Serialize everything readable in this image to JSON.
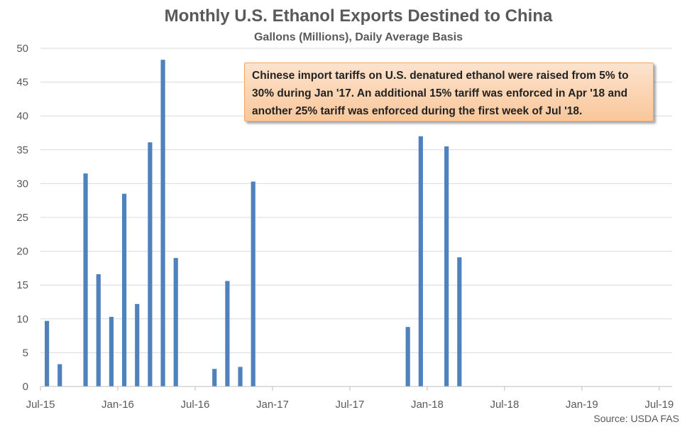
{
  "chart_data": {
    "type": "bar",
    "title": "Monthly U.S. Ethanol Exports Destined to China",
    "subtitle": "Gallons (Millions), Daily Average Basis",
    "xlabel": "",
    "ylabel": "",
    "ylim": [
      0,
      50
    ],
    "yticks": [
      0,
      5,
      10,
      15,
      20,
      25,
      30,
      35,
      40,
      45,
      50
    ],
    "xtick_labels": [
      "Jul-15",
      "Jan-16",
      "Jul-16",
      "Jan-17",
      "Jul-17",
      "Jan-18",
      "Jul-18",
      "Jan-19",
      "Jul-19"
    ],
    "grid": true,
    "bar_color": "#4f81bd",
    "categories": [
      "Jul-15",
      "Aug-15",
      "Sep-15",
      "Oct-15",
      "Nov-15",
      "Dec-15",
      "Jan-16",
      "Feb-16",
      "Mar-16",
      "Apr-16",
      "May-16",
      "Jun-16",
      "Jul-16",
      "Aug-16",
      "Sep-16",
      "Oct-16",
      "Nov-16",
      "Dec-16",
      "Jan-17",
      "Feb-17",
      "Mar-17",
      "Apr-17",
      "May-17",
      "Jun-17",
      "Jul-17",
      "Aug-17",
      "Sep-17",
      "Oct-17",
      "Nov-17",
      "Dec-17",
      "Jan-18",
      "Feb-18",
      "Mar-18",
      "Apr-18",
      "May-18",
      "Jun-18",
      "Jul-18",
      "Aug-18",
      "Sep-18",
      "Oct-18",
      "Nov-18",
      "Dec-18",
      "Jan-19",
      "Feb-19",
      "Mar-19",
      "Apr-19",
      "May-19",
      "Jun-19",
      "Jul-19"
    ],
    "values": [
      9.7,
      3.3,
      0,
      31.5,
      16.6,
      10.3,
      28.5,
      12.2,
      36.1,
      48.3,
      19.0,
      0,
      0,
      2.6,
      15.6,
      2.9,
      30.3,
      0,
      0,
      0,
      0,
      0,
      0,
      0,
      0,
      0,
      0,
      0,
      8.8,
      37.0,
      0,
      35.5,
      19.1,
      0,
      0,
      0,
      0,
      0,
      0,
      0,
      0,
      0,
      0,
      0,
      0,
      0,
      0,
      0,
      0
    ],
    "annotation": "Chinese import tariffs on U.S. denatured ethanol were raised from 5% to 30% during Jan '17. An additional 15% tariff was enforced in Apr '18 and another 25% tariff was enforced during the first week of Jul '18.",
    "source": "Source: USDA FAS"
  }
}
